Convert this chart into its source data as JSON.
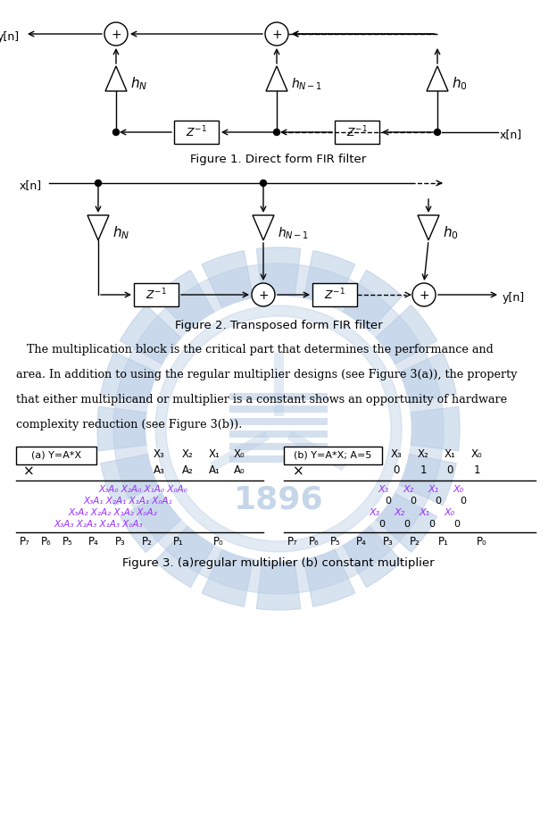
{
  "fig_width": 6.24,
  "fig_height": 9.17,
  "bg_color": "#ffffff",
  "fig1_caption": "Figure 1. Direct form FIR filter",
  "fig2_caption": "Figure 2. Transposed form FIR filter",
  "fig3_caption": "Figure 3. (a)regular multiplier (b) constant multiplier",
  "watermark_color": "#b8cce4",
  "diagram_color": "#000000",
  "purple_color": "#9b30ff",
  "lw": 1.0
}
